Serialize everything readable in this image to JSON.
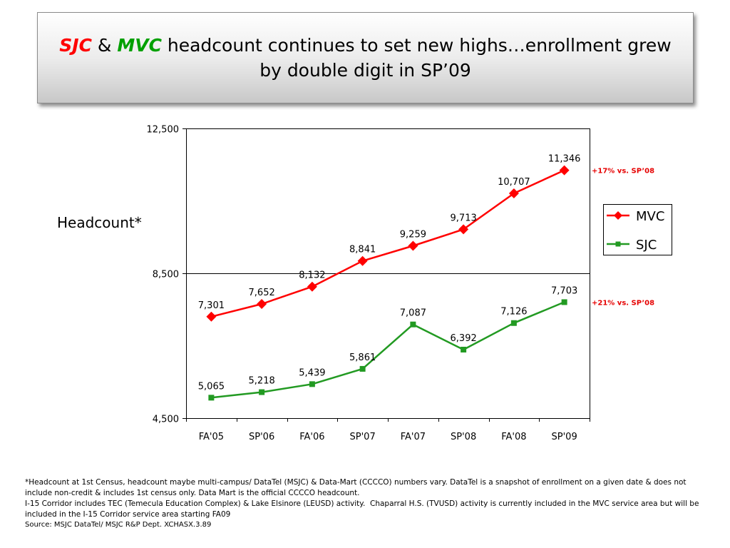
{
  "slide": {
    "title": {
      "sjc": "SJC",
      "amp": "&",
      "mvc": "MVC",
      "line1_rest": "headcount continues to set new highs…enrollment grew",
      "line2": "by double digit in SP’09"
    },
    "title_colors": {
      "sjc": "#FF0000",
      "mvc": "#00A000"
    },
    "footnotes": [
      "*Headcount at 1st Census, headcount maybe multi-campus/ DataTel (MSJC) & Data-Mart (CCCCO) numbers vary. DataTel is a snapshot of enrollment on a given date & does not include non-credit & includes 1st census only. Data Mart is the official CCCCO headcount.",
      "I-15 Corridor includes TEC (Temecula Education Complex) & Lake Elsinore (LEUSD) activity.  Chaparral H.S. (TVUSD) activity is currently included in the MVC service area but will be included in the I-15 Corridor service area starting FA09"
    ],
    "source": "Source: MSJC DataTel/ MSJC R&P Dept. XCHASX.3.89"
  },
  "chart_data": {
    "type": "line",
    "categories": [
      "FA'05",
      "SP'06",
      "FA'06",
      "SP'07",
      "FA'07",
      "SP'08",
      "FA'08",
      "SP'09"
    ],
    "ylabel": "Headcount*",
    "ylim": [
      4500,
      12500
    ],
    "yticks": [
      4500,
      8500,
      12500
    ],
    "ytick_labels": [
      "4,500",
      "8,500",
      "12,500"
    ],
    "grid": "horizontal",
    "legend_position": "right",
    "series": [
      {
        "name": "MVC",
        "color": "#FF0000",
        "marker": "diamond",
        "values": [
          7301,
          7652,
          8132,
          8841,
          9259,
          9713,
          10707,
          11346
        ],
        "labels": [
          "7,301",
          "7,652",
          "8,132",
          "8,841",
          "9,259",
          "9,713",
          "10,707",
          "11,346"
        ]
      },
      {
        "name": "SJC",
        "color": "#229A22",
        "marker": "square",
        "values": [
          5065,
          5218,
          5439,
          5861,
          7087,
          6392,
          7126,
          7703
        ],
        "labels": [
          "5,065",
          "5,218",
          "5,439",
          "5,861",
          "7,087",
          "6,392",
          "7,126",
          "7,703"
        ]
      }
    ],
    "annotations": [
      {
        "series": "MVC",
        "text": "+17% vs. SP’08",
        "color": "#E60000"
      },
      {
        "series": "SJC",
        "text": "+21% vs. SP’08",
        "color": "#E60000"
      }
    ]
  }
}
